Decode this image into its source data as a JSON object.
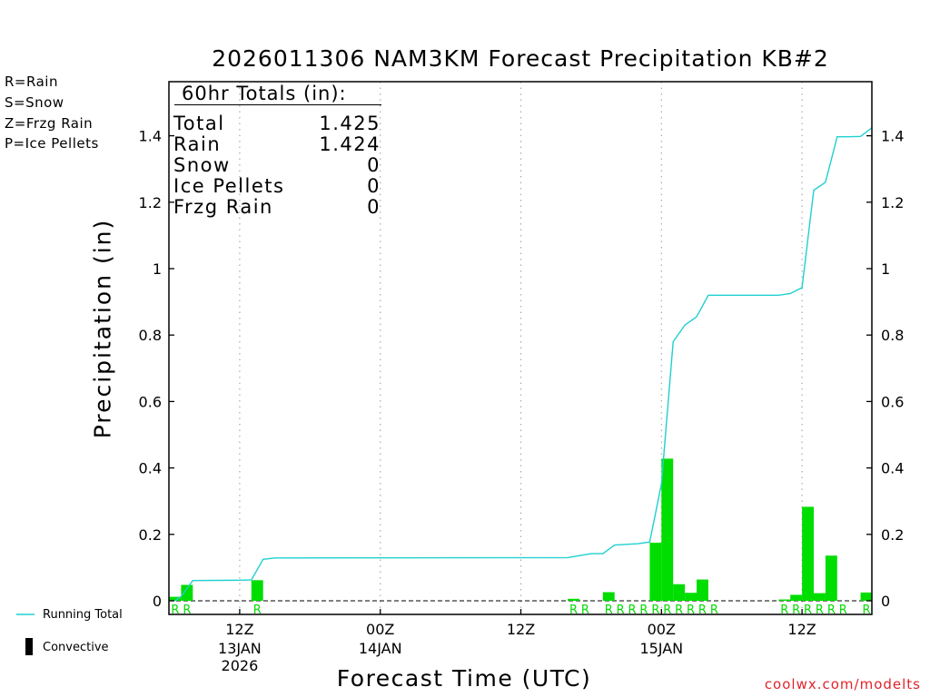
{
  "chart_data": {
    "type": "bar",
    "title": "2026011306 NAM3KM Forecast Precipitation KB#2",
    "xlabel": "Forecast Time (UTC)",
    "ylabel": "Precipitation (in)",
    "ylim": [
      -0.04,
      1.56
    ],
    "yticks": [
      0,
      0.2,
      0.4,
      0.6,
      0.8,
      1,
      1.2,
      1.4
    ],
    "ytick_labels": [
      "0",
      "0.2",
      "0.4",
      "0.6",
      "0.8",
      "1",
      "1.2",
      "1.4"
    ],
    "xlim": [
      0,
      60
    ],
    "x_units": "forecast hour",
    "x_ticks": [
      {
        "x": 6,
        "label": "12Z",
        "sub1": "13JAN",
        "sub2": "2026"
      },
      {
        "x": 18,
        "label": "00Z",
        "sub1": "14JAN",
        "sub2": ""
      },
      {
        "x": 30,
        "label": "12Z",
        "sub1": "",
        "sub2": ""
      },
      {
        "x": 42,
        "label": "00Z",
        "sub1": "15JAN",
        "sub2": ""
      },
      {
        "x": 54,
        "label": "12Z",
        "sub1": "",
        "sub2": ""
      }
    ],
    "grid": "vertical dotted at x ticks",
    "bars": {
      "name": "Rain",
      "x": [
        1,
        2,
        8,
        35,
        38,
        42,
        43,
        44,
        45,
        46,
        53,
        54,
        55,
        56,
        57,
        60
      ],
      "values": [
        0.012,
        0.048,
        0.062,
        0.006,
        0.026,
        0.175,
        0.428,
        0.05,
        0.024,
        0.064,
        0.004,
        0.018,
        0.283,
        0.023,
        0.136,
        0.025
      ],
      "precip_type_labels": [
        "R",
        "R",
        "R",
        "R",
        "R",
        "R",
        "R",
        "R",
        "R",
        "R",
        "R",
        "R",
        "R",
        "R",
        "R",
        "R"
      ]
    },
    "extra_type_labels": {
      "x": [
        36,
        39,
        40,
        41,
        47,
        58
      ],
      "label": "R"
    },
    "running_total": {
      "name": "Running Total",
      "x": [
        0.5,
        1,
        2,
        6,
        7,
        8,
        9,
        34,
        35,
        36,
        37,
        38,
        39,
        40,
        41,
        42,
        43,
        44,
        45,
        46,
        47,
        48,
        49,
        50,
        51,
        52,
        53,
        54,
        55,
        56,
        57,
        58,
        59,
        60
      ],
      "values": [
        0.0,
        0.013,
        0.061,
        0.062,
        0.063,
        0.125,
        0.129,
        0.13,
        0.136,
        0.142,
        0.142,
        0.168,
        0.17,
        0.172,
        0.177,
        0.352,
        0.78,
        0.83,
        0.855,
        0.92,
        0.92,
        0.92,
        0.92,
        0.92,
        0.92,
        0.92,
        0.925,
        0.943,
        1.236,
        1.26,
        1.397,
        1.397,
        1.398,
        1.425
      ]
    },
    "colors": {
      "rain": "#00dd00",
      "snow": "#3c50f0",
      "frzg_rain": "#f0882d",
      "ice_pellets": "#e62896",
      "running_total": "#1fd0d0",
      "credit": "#e0252c"
    }
  },
  "precip_type_legend": [
    {
      "text": "R=Rain",
      "color": "#00dd00"
    },
    {
      "text": "S=Snow",
      "color": "#3c50f0"
    },
    {
      "text": "Z=Frzg Rain",
      "color": "#f0882d"
    },
    {
      "text": "P=Ice Pellets",
      "color": "#e62896"
    }
  ],
  "totals": {
    "title": "60hr Totals (in):",
    "rows": [
      {
        "label": "Total",
        "value": "1.425"
      },
      {
        "label": "Rain",
        "value": "1.424"
      },
      {
        "label": "Snow",
        "value": "0"
      },
      {
        "label": "Ice Pellets",
        "value": "0"
      },
      {
        "label": "Frzg Rain",
        "value": "0"
      }
    ]
  },
  "bottom_legend": {
    "running_total": "Running Total",
    "convective": "Convective"
  },
  "credit": "coolwx.com/modelts"
}
